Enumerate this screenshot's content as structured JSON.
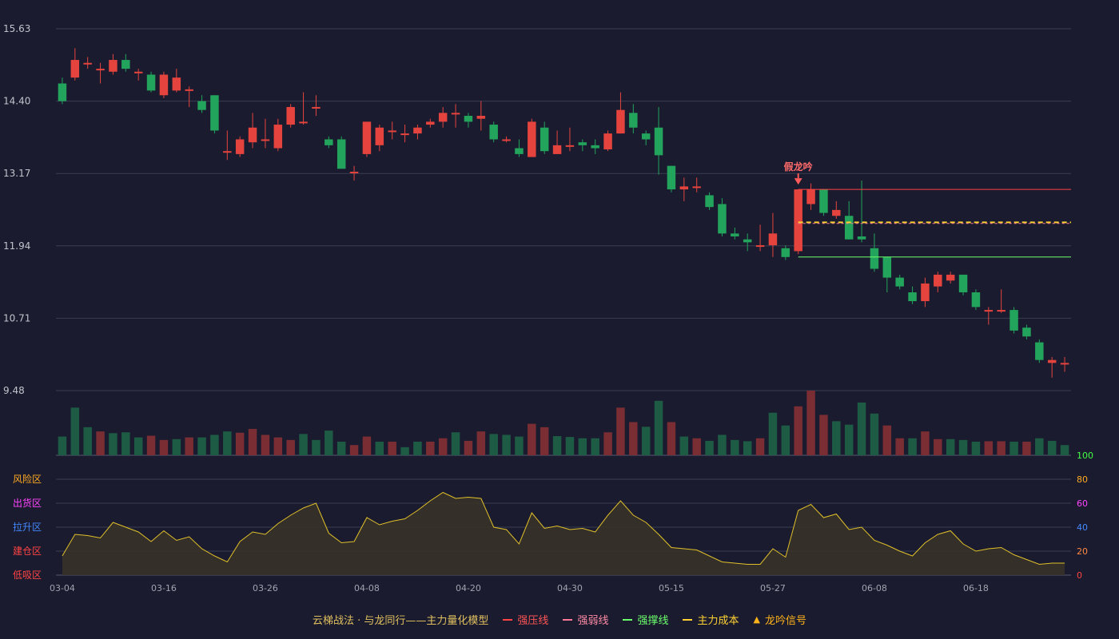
{
  "chart_data": {
    "type": "candlestick",
    "price_axis": {
      "ticks": [
        15.63,
        14.4,
        13.17,
        11.94,
        10.71,
        9.48
      ],
      "ylim": [
        9.48,
        15.63
      ]
    },
    "x_tick_labels": [
      "03-04",
      "03-16",
      "03-26",
      "04-08",
      "04-20",
      "04-30",
      "05-15",
      "05-27",
      "06-08",
      "06-18"
    ],
    "x_tick_indices": [
      0,
      8,
      16,
      24,
      32,
      40,
      48,
      56,
      64,
      72
    ],
    "candles": [
      [
        14.7,
        14.4,
        14.8,
        14.35
      ],
      [
        14.8,
        15.1,
        15.3,
        14.75
      ],
      [
        15.05,
        15.05,
        15.15,
        14.95
      ],
      [
        14.95,
        14.95,
        15.05,
        14.7
      ],
      [
        14.9,
        15.1,
        15.2,
        14.85
      ],
      [
        15.1,
        14.95,
        15.2,
        14.9
      ],
      [
        14.88,
        14.9,
        14.95,
        14.75
      ],
      [
        14.85,
        14.58,
        14.9,
        14.55
      ],
      [
        14.5,
        14.85,
        14.9,
        14.45
      ],
      [
        14.58,
        14.8,
        14.95,
        14.55
      ],
      [
        14.6,
        14.6,
        14.65,
        14.3
      ],
      [
        14.4,
        14.25,
        14.5,
        14.2
      ],
      [
        14.5,
        13.9,
        14.5,
        13.85
      ],
      [
        13.55,
        13.55,
        13.9,
        13.4
      ],
      [
        13.5,
        13.75,
        13.8,
        13.45
      ],
      [
        13.7,
        13.95,
        14.2,
        13.6
      ],
      [
        13.75,
        13.75,
        14.1,
        13.6
      ],
      [
        13.6,
        14.0,
        14.1,
        13.55
      ],
      [
        14.0,
        14.3,
        14.35,
        13.95
      ],
      [
        14.05,
        14.05,
        14.55,
        14.0
      ],
      [
        14.3,
        14.3,
        14.5,
        14.15
      ],
      [
        13.75,
        13.65,
        13.8,
        13.6
      ],
      [
        13.75,
        13.25,
        13.8,
        13.25
      ],
      [
        13.2,
        13.2,
        13.3,
        13.05
      ],
      [
        13.5,
        14.05,
        14.05,
        13.45
      ],
      [
        13.65,
        13.95,
        14.0,
        13.55
      ],
      [
        13.9,
        13.9,
        14.05,
        13.75
      ],
      [
        13.85,
        13.85,
        14.0,
        13.7
      ],
      [
        13.85,
        13.95,
        14.0,
        13.75
      ],
      [
        14.0,
        14.05,
        14.1,
        13.95
      ],
      [
        14.05,
        14.2,
        14.3,
        13.95
      ],
      [
        14.2,
        14.2,
        14.35,
        13.95
      ],
      [
        14.15,
        14.05,
        14.2,
        13.95
      ],
      [
        14.1,
        14.15,
        14.4,
        13.9
      ],
      [
        14.0,
        13.75,
        14.05,
        13.7
      ],
      [
        13.75,
        13.75,
        13.8,
        13.7
      ],
      [
        13.6,
        13.5,
        13.75,
        13.45
      ],
      [
        13.45,
        14.05,
        14.1,
        13.45
      ],
      [
        13.95,
        13.55,
        14.05,
        13.5
      ],
      [
        13.5,
        13.65,
        13.9,
        13.5
      ],
      [
        13.65,
        13.65,
        13.95,
        13.55
      ],
      [
        13.7,
        13.65,
        13.75,
        13.55
      ],
      [
        13.65,
        13.6,
        13.75,
        13.5
      ],
      [
        13.58,
        13.85,
        13.9,
        13.55
      ],
      [
        13.85,
        14.25,
        14.55,
        13.85
      ],
      [
        14.2,
        13.95,
        14.35,
        13.85
      ],
      [
        13.85,
        13.75,
        13.9,
        13.65
      ],
      [
        13.95,
        13.48,
        14.3,
        13.15
      ],
      [
        13.3,
        12.9,
        13.3,
        12.85
      ],
      [
        12.9,
        12.95,
        13.1,
        12.7
      ],
      [
        12.95,
        12.95,
        13.1,
        12.85
      ],
      [
        12.8,
        12.6,
        12.85,
        12.55
      ],
      [
        12.65,
        12.15,
        12.75,
        12.1
      ],
      [
        12.15,
        12.1,
        12.25,
        12.05
      ],
      [
        12.05,
        12.0,
        12.15,
        11.85
      ],
      [
        11.95,
        11.95,
        12.3,
        11.85
      ],
      [
        11.95,
        12.15,
        12.5,
        11.75
      ],
      [
        11.9,
        11.75,
        11.95,
        11.7
      ],
      [
        11.85,
        12.9,
        12.9,
        11.8
      ],
      [
        12.65,
        12.9,
        13.0,
        12.55
      ],
      [
        12.9,
        12.5,
        12.9,
        12.45
      ],
      [
        12.45,
        12.55,
        12.7,
        12.4
      ],
      [
        12.45,
        12.05,
        12.7,
        12.05
      ],
      [
        12.1,
        12.05,
        13.05,
        12.0
      ],
      [
        11.9,
        11.55,
        12.15,
        11.5
      ],
      [
        11.75,
        11.4,
        11.75,
        11.15
      ],
      [
        11.4,
        11.25,
        11.45,
        11.2
      ],
      [
        11.15,
        11.0,
        11.25,
        10.95
      ],
      [
        11.0,
        11.3,
        11.4,
        10.9
      ],
      [
        11.25,
        11.45,
        11.5,
        11.15
      ],
      [
        11.35,
        11.45,
        11.5,
        11.3
      ],
      [
        11.45,
        11.15,
        11.45,
        11.1
      ],
      [
        11.15,
        10.9,
        11.2,
        10.85
      ],
      [
        10.85,
        10.85,
        10.9,
        10.6
      ],
      [
        10.85,
        10.85,
        11.2,
        10.8
      ],
      [
        10.85,
        10.5,
        10.9,
        10.45
      ],
      [
        10.55,
        10.4,
        10.6,
        10.35
      ],
      [
        10.3,
        10.0,
        10.35,
        9.95
      ],
      [
        9.95,
        10.0,
        10.05,
        9.7
      ],
      [
        9.95,
        9.95,
        10.05,
        9.8
      ]
    ],
    "volume": [
      44,
      112,
      66,
      56,
      52,
      54,
      42,
      46,
      36,
      38,
      42,
      42,
      48,
      56,
      53,
      62,
      48,
      42,
      36,
      50,
      36,
      58,
      32,
      24,
      44,
      32,
      32,
      19,
      32,
      32,
      40,
      54,
      34,
      56,
      50,
      48,
      44,
      74,
      66,
      45,
      43,
      40,
      40,
      54,
      112,
      78,
      67,
      128,
      78,
      44,
      40,
      34,
      48,
      36,
      33,
      40,
      100,
      70,
      115,
      152,
      95,
      80,
      72,
      124,
      98,
      70,
      40,
      40,
      56,
      38,
      38,
      36,
      32,
      33,
      33,
      32,
      32,
      40,
      34,
      24
    ],
    "volume_up": [
      false,
      false,
      false,
      true,
      false,
      false,
      false,
      true,
      true,
      false,
      true,
      false,
      false,
      false,
      true,
      true,
      true,
      true,
      true,
      false,
      false,
      false,
      false,
      true,
      true,
      false,
      true,
      false,
      false,
      true,
      true,
      false,
      true,
      true,
      false,
      false,
      false,
      true,
      true,
      false,
      false,
      false,
      false,
      true,
      true,
      true,
      false,
      false,
      true,
      false,
      true,
      false,
      false,
      false,
      false,
      true,
      false,
      false,
      true,
      true,
      true,
      false,
      false,
      false,
      false,
      true,
      true,
      false,
      true,
      true,
      false,
      false,
      false,
      true,
      true,
      false,
      true,
      false,
      false,
      false
    ],
    "oscillator": {
      "levels": [
        0,
        20,
        40,
        60,
        80,
        100
      ],
      "zones": [
        "风险区",
        "出货区",
        "拉升区",
        "建仓区",
        "低吸区"
      ],
      "values": [
        16,
        34,
        33,
        31,
        44,
        40,
        36,
        28,
        37,
        29,
        32,
        22,
        16,
        11,
        28,
        36,
        34,
        43,
        50,
        56,
        60,
        35,
        27,
        28,
        48,
        42,
        45,
        47,
        54,
        62,
        69,
        64,
        65,
        64,
        40,
        38,
        26,
        52,
        39,
        41,
        38,
        39,
        36,
        50,
        62,
        50,
        44,
        34,
        23,
        22,
        21,
        16,
        11,
        10,
        9,
        9,
        22,
        15,
        54,
        59,
        48,
        51,
        38,
        40,
        29,
        25,
        20,
        16,
        27,
        34,
        37,
        26,
        20,
        22,
        23,
        17,
        13,
        9,
        10,
        10
      ]
    },
    "signal_label": "假龙吟",
    "signal_index": 58,
    "pressure_line": 12.9,
    "support_line": 11.75,
    "cost_line": [
      12.34,
      12.32
    ],
    "colors": {
      "up": "#e5443e",
      "down": "#22a45d",
      "vol_up": "#7a2d33",
      "vol_down": "#1e5b45",
      "osc_line": "#e0c02a",
      "osc_fill": "#3a3327"
    }
  },
  "legend": {
    "title": "云梯战法 · 与龙同行——主力量化模型",
    "items": [
      {
        "label": "强压线",
        "color": "#ff4444"
      },
      {
        "label": "强弱线",
        "color": "#ff7799"
      },
      {
        "label": "强撑线",
        "color": "#6cff6c"
      },
      {
        "label": "主力成本",
        "color": "#ffd233"
      },
      {
        "label": "龙吟信号",
        "color": "#ffb31a"
      }
    ]
  }
}
